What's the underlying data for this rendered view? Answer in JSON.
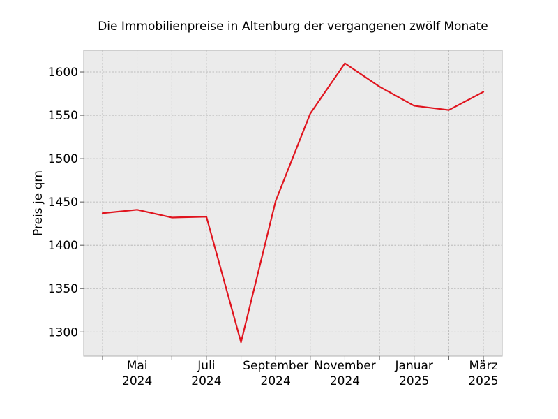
{
  "chart_data": {
    "type": "line",
    "title": "Die Immobilienpreise in Altenburg der vergangenen zwölf Monate",
    "xlabel": "",
    "ylabel": "Preis je qm",
    "x": [
      "2024-04",
      "2024-05",
      "2024-06",
      "2024-07",
      "2024-08",
      "2024-09",
      "2024-10",
      "2024-11",
      "2024-12",
      "2025-01",
      "2025-02",
      "2025-03"
    ],
    "series": [
      {
        "color": "#e0141e",
        "values": [
          1437,
          1441,
          1432,
          1433,
          1288,
          1451,
          1552,
          1610,
          1583,
          1561,
          1556,
          1577
        ]
      }
    ],
    "x_tick_labels": [
      {
        "x": "2024-05",
        "line1": "Mai",
        "line2": "2024"
      },
      {
        "x": "2024-07",
        "line1": "Juli",
        "line2": "2024"
      },
      {
        "x": "2024-09",
        "line1": "September",
        "line2": "2024"
      },
      {
        "x": "2024-11",
        "line1": "November",
        "line2": "2024"
      },
      {
        "x": "2025-01",
        "line1": "Januar",
        "line2": "2025"
      },
      {
        "x": "2025-03",
        "line1": "März",
        "line2": "2025"
      }
    ],
    "yticks": [
      1300,
      1350,
      1400,
      1450,
      1500,
      1550,
      1600
    ],
    "ylim": [
      1272,
      1625
    ],
    "grid": true,
    "legend": "none"
  }
}
